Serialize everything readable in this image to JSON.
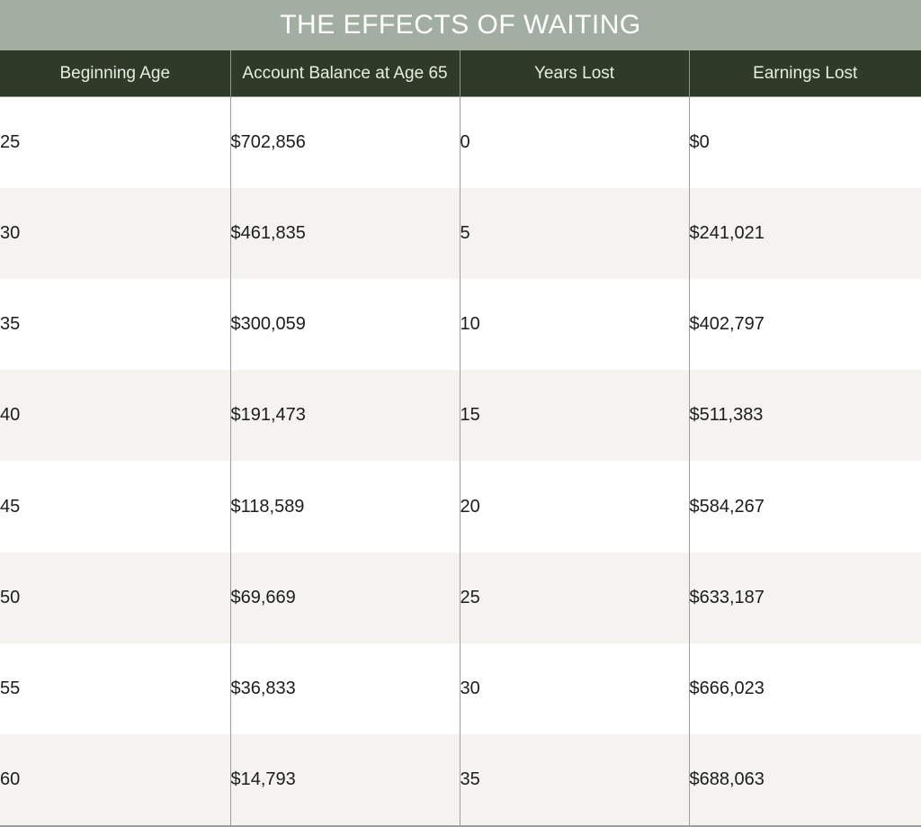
{
  "chart_data": {
    "type": "table",
    "title": "THE EFFECTS OF WAITING",
    "columns": [
      "Beginning Age",
      "Account Balance at Age 65",
      "Years Lost",
      "Earnings Lost"
    ],
    "rows": [
      [
        "25",
        "$702,856",
        "0",
        "$0"
      ],
      [
        "30",
        "$461,835",
        "5",
        "$241,021"
      ],
      [
        "35",
        "$300,059",
        "10",
        "$402,797"
      ],
      [
        "40",
        "$191,473",
        "15",
        "$511,383"
      ],
      [
        "45",
        "$118,589",
        "20",
        "$584,267"
      ],
      [
        "50",
        "$69,669",
        "25",
        "$633,187"
      ],
      [
        "55",
        "$36,833",
        "30",
        "$666,023"
      ],
      [
        "60",
        "$14,793",
        "35",
        "$688,063"
      ]
    ]
  },
  "colors": {
    "title_bar": "#a3aea2",
    "header_bar": "#2f3a28",
    "alt_row": "#f4f3ef"
  }
}
